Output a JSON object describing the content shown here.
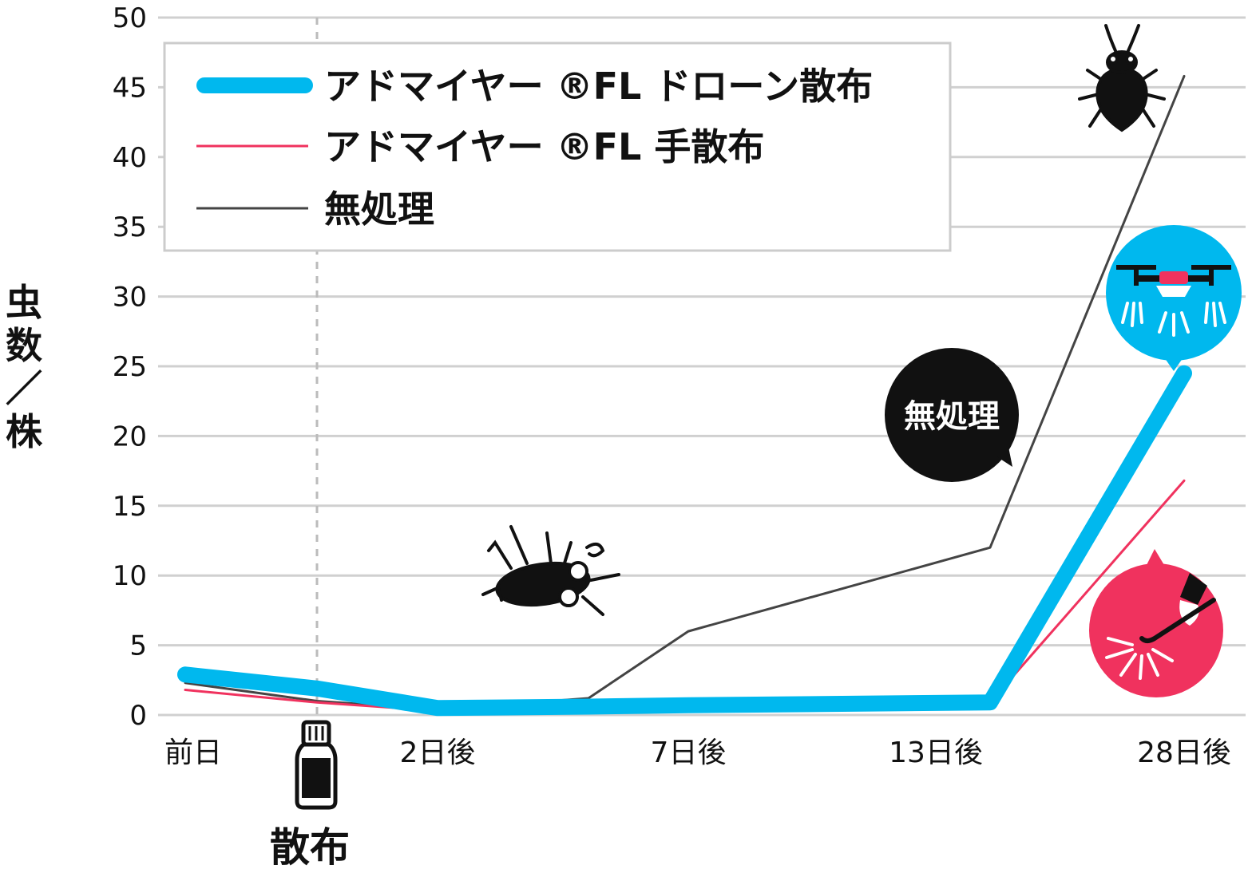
{
  "chart_data": {
    "type": "line",
    "categories": [
      "前日",
      "散布",
      "2日後",
      "",
      "7日後",
      "13日後",
      "28日後"
    ],
    "x_tick_labels": [
      "前日",
      "2日後",
      "7日後",
      "13日後",
      "28日後"
    ],
    "ylabel": "虫数／株",
    "ylabel_chars": [
      "虫",
      "数",
      "／",
      "株"
    ],
    "ylim": [
      0,
      50
    ],
    "yticks": [
      0,
      5,
      10,
      15,
      20,
      25,
      30,
      35,
      40,
      45,
      50
    ],
    "grid": true,
    "legend_position": "top-left",
    "series": [
      {
        "name": "アドマイヤー ®FL ドローン散布",
        "color": "#00b8ee",
        "values": [
          2.9,
          1.9,
          0.5,
          0.6,
          0.7,
          0.9,
          24.5
        ]
      },
      {
        "name": "アドマイヤー ®FL 手散布",
        "color": "#f0325e",
        "values": [
          1.8,
          0.9,
          0.3,
          0.5,
          0.6,
          0.9,
          16.8
        ]
      },
      {
        "name": "無処理",
        "color": "#444444",
        "values": [
          2.3,
          1.0,
          0.4,
          1.2,
          6.0,
          12.0,
          45.8
        ]
      }
    ],
    "annotations": {
      "spray_marker": "散布",
      "untreated_bubble": "無処理"
    }
  },
  "colors": {
    "drone": "#00b8ee",
    "hand": "#f0325e",
    "untreated": "#444444",
    "grid": "#d0d0d0"
  },
  "icons": [
    "bottle-icon",
    "dead-bug-icon",
    "bug-icon",
    "drone-icon",
    "hand-sprayer-icon"
  ]
}
